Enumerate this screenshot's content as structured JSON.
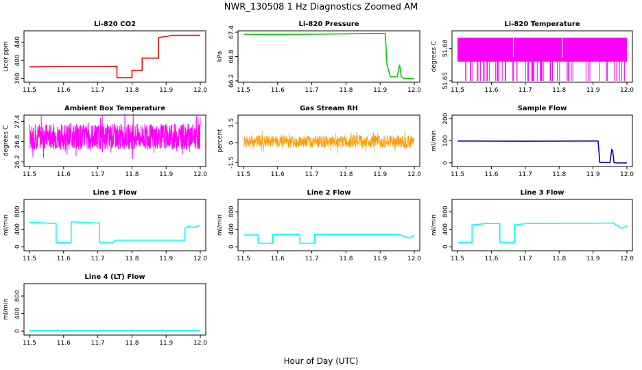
{
  "figure": {
    "title": "NWR_130508  1 Hz Diagnostics Zoomed AM",
    "xlabel": "Hour of Day (UTC)"
  },
  "colors": {
    "red": "#ff0000",
    "green": "#00cc00",
    "magenta": "#ff00ff",
    "orange": "#ff9900",
    "blue": "#0000cc",
    "cyan": "#00ffff"
  },
  "chart_data": [
    {
      "type": "line",
      "title": "Li-820 CO2",
      "ylabel": "Licor ppm",
      "color": "red",
      "xlim": [
        11.5,
        12.0
      ],
      "ylim": [
        355,
        462
      ],
      "xticks": [
        "11.5",
        "11.6",
        "11.7",
        "11.8",
        "11.9",
        "12.0"
      ],
      "yticks": [
        "360",
        "400",
        "440"
      ],
      "x": [
        11.5,
        11.756,
        11.756,
        11.8,
        11.8,
        11.83,
        11.83,
        11.878,
        11.878,
        11.92,
        12.0
      ],
      "y": [
        386,
        387,
        362,
        362,
        378,
        378,
        405,
        405,
        450,
        455,
        455
      ]
    },
    {
      "type": "line",
      "title": "Li-820 Pressure",
      "ylabel": "kPa",
      "color": "green",
      "xlim": [
        11.5,
        12.0
      ],
      "ylim": [
        66.2,
        67.4
      ],
      "xticks": [
        "11.5",
        "11.6",
        "11.7",
        "11.8",
        "11.9",
        "12.0"
      ],
      "yticks": [
        "66.2",
        "66.8",
        "67.4"
      ],
      "x": [
        11.5,
        11.6,
        11.7,
        11.8,
        11.88,
        11.915,
        11.92,
        11.93,
        11.95,
        11.957,
        11.962,
        11.97,
        12.0
      ],
      "y": [
        67.35,
        67.34,
        67.35,
        67.36,
        67.37,
        67.37,
        66.6,
        66.3,
        66.3,
        66.6,
        66.3,
        66.26,
        66.25
      ]
    },
    {
      "type": "line",
      "title": "Li-820 Temperature",
      "ylabel": "degrees C",
      "color": "magenta",
      "xlim": [
        11.5,
        12.0
      ],
      "ylim": [
        51.65,
        51.695
      ],
      "xticks": [
        "11.5",
        "11.6",
        "11.7",
        "11.8",
        "11.9",
        "12.0"
      ],
      "yticks": [
        "51.65",
        "51.68"
      ],
      "x": [
        11.5,
        12.0
      ],
      "y": [
        51.65,
        51.69
      ]
    },
    {
      "type": "line",
      "title": "Ambient Box Temperature",
      "ylabel": "degrees C",
      "color": "magenta",
      "xlim": [
        11.5,
        12.0
      ],
      "ylim": [
        26.1,
        27.55
      ],
      "xticks": [
        "11.5",
        "11.6",
        "11.7",
        "11.8",
        "11.9",
        "12.0"
      ],
      "yticks": [
        "26.2",
        "26.8",
        "27.4"
      ],
      "x": [
        11.5,
        12.0
      ],
      "y": [
        26.4,
        27.5
      ]
    },
    {
      "type": "line",
      "title": "Gas Stream RH",
      "ylabel": "percent",
      "color": "orange",
      "xlim": [
        11.5,
        12.0
      ],
      "ylim": [
        -1.7,
        2.0
      ],
      "xticks": [
        "11.5",
        "11.6",
        "11.7",
        "11.8",
        "11.9",
        "12.0"
      ],
      "yticks": [
        "-1.5",
        "0",
        "1.5"
      ],
      "x": [
        11.5,
        12.0
      ],
      "y": [
        -0.6,
        0.8
      ]
    },
    {
      "type": "line",
      "title": "Sample Flow",
      "ylabel": "ml/min",
      "color": "blue",
      "xlim": [
        11.5,
        12.0
      ],
      "ylim": [
        -10,
        210
      ],
      "xticks": [
        "11.5",
        "11.6",
        "11.7",
        "11.8",
        "11.9",
        "12.0"
      ],
      "yticks": [
        "0",
        "100",
        "200"
      ],
      "x": [
        11.5,
        11.7,
        11.9,
        11.915,
        11.92,
        11.95,
        11.955,
        11.958,
        11.962,
        11.97,
        12.0
      ],
      "y": [
        99,
        98,
        99,
        99,
        2,
        1,
        60,
        55,
        1,
        0,
        0
      ]
    },
    {
      "type": "line",
      "title": "Line 1 Flow",
      "ylabel": "ml/min",
      "color": "cyan",
      "xlim": [
        11.5,
        12.0
      ],
      "ylim": [
        -60,
        1050
      ],
      "xticks": [
        "11.5",
        "11.6",
        "11.7",
        "11.8",
        "11.9",
        "12.0"
      ],
      "yticks": [
        "0",
        "400",
        "800"
      ],
      "x": [
        11.5,
        11.578,
        11.578,
        11.622,
        11.622,
        11.705,
        11.705,
        11.745,
        11.75,
        11.955,
        11.955,
        11.965,
        11.98,
        12.0
      ],
      "y": [
        560,
        530,
        100,
        100,
        570,
        540,
        95,
        95,
        150,
        150,
        420,
        470,
        440,
        490
      ]
    },
    {
      "type": "line",
      "title": "Line 2 Flow",
      "ylabel": "ml/min",
      "color": "cyan",
      "xlim": [
        11.5,
        12.0
      ],
      "ylim": [
        -60,
        1050
      ],
      "xticks": [
        "11.5",
        "11.6",
        "11.7",
        "11.8",
        "11.9",
        "12.0"
      ],
      "yticks": [
        "0",
        "400",
        "800"
      ],
      "x": [
        11.5,
        11.543,
        11.543,
        11.585,
        11.585,
        11.665,
        11.665,
        11.708,
        11.708,
        11.955,
        11.97,
        11.985,
        12.0
      ],
      "y": [
        270,
        270,
        80,
        80,
        280,
        280,
        80,
        80,
        280,
        280,
        240,
        200,
        260
      ]
    },
    {
      "type": "line",
      "title": "Line 3 Flow",
      "ylabel": "ml/min",
      "color": "cyan",
      "xlim": [
        11.5,
        12.0
      ],
      "ylim": [
        -60,
        1050
      ],
      "xticks": [
        "11.5",
        "11.6",
        "11.7",
        "11.8",
        "11.9",
        "12.0"
      ],
      "yticks": [
        "0",
        "400",
        "800"
      ],
      "x": [
        11.5,
        11.543,
        11.543,
        11.585,
        11.625,
        11.625,
        11.668,
        11.668,
        11.705,
        11.96,
        11.985,
        12.0
      ],
      "y": [
        100,
        100,
        500,
        530,
        530,
        100,
        100,
        500,
        530,
        540,
        420,
        480
      ]
    },
    {
      "type": "line",
      "title": "Line 4 (LT) Flow",
      "ylabel": "ml/min",
      "color": "cyan",
      "xlim": [
        11.5,
        12.0
      ],
      "ylim": [
        -60,
        1050
      ],
      "xticks": [
        "11.5",
        "11.6",
        "11.7",
        "11.8",
        "11.9",
        "12.0"
      ],
      "yticks": [
        "0",
        "400",
        "800"
      ],
      "x": [
        11.5,
        12.0
      ],
      "y": [
        5,
        5
      ]
    }
  ]
}
